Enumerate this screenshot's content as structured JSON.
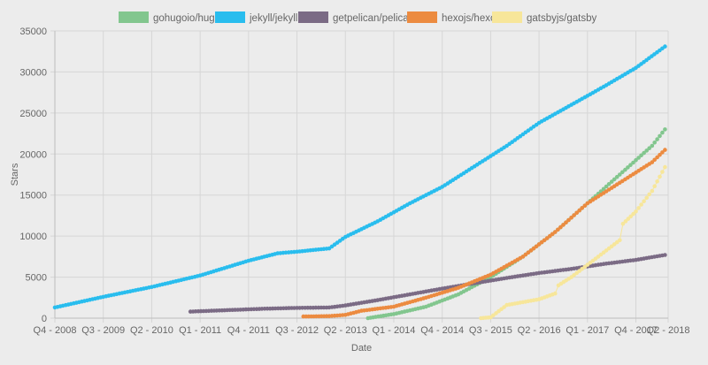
{
  "chart_data": {
    "type": "line",
    "title": "",
    "xlabel": "Date",
    "ylabel": "Stars",
    "ylim": [
      0,
      35000
    ],
    "y_ticks": [
      0,
      5000,
      10000,
      15000,
      20000,
      25000,
      30000,
      35000
    ],
    "x_ticks": [
      "Q4 - 2008",
      "Q3 - 2009",
      "Q2 - 2010",
      "Q1 - 2011",
      "Q4 - 2011",
      "Q3 - 2012",
      "Q2 - 2013",
      "Q1 - 2014",
      "Q4 - 2014",
      "Q3 - 2015",
      "Q2 - 2016",
      "Q1 - 2017",
      "Q4 - 2017",
      "Q2 - 2018"
    ],
    "x_tick_positions": [
      2008.75,
      2009.5,
      2010.25,
      2011.0,
      2011.75,
      2012.5,
      2013.25,
      2014.0,
      2014.75,
      2015.5,
      2016.25,
      2017.0,
      2017.75,
      2018.25
    ],
    "xlim": [
      2008.75,
      2018.25
    ],
    "x_unit": "year (decimal)",
    "grid": true,
    "legend_position": "top",
    "series": [
      {
        "name": "gohugoio/hugo",
        "color": "#82c68e",
        "points": [
          [
            2013.6,
            0
          ],
          [
            2014.0,
            500
          ],
          [
            2014.5,
            1400
          ],
          [
            2015.0,
            2900
          ],
          [
            2015.5,
            5000
          ],
          [
            2016.0,
            7500
          ],
          [
            2016.5,
            10500
          ],
          [
            2017.0,
            14000
          ],
          [
            2017.5,
            17500
          ],
          [
            2018.0,
            21000
          ],
          [
            2018.2,
            23000
          ]
        ]
      },
      {
        "name": "jekyll/jekyll",
        "color": "#29bdee",
        "points": [
          [
            2008.75,
            1300
          ],
          [
            2009.5,
            2600
          ],
          [
            2010.25,
            3800
          ],
          [
            2011.0,
            5200
          ],
          [
            2011.75,
            7000
          ],
          [
            2012.2,
            7900
          ],
          [
            2012.5,
            8100
          ],
          [
            2013.0,
            8500
          ],
          [
            2013.25,
            9900
          ],
          [
            2013.75,
            11800
          ],
          [
            2014.25,
            14000
          ],
          [
            2014.75,
            16000
          ],
          [
            2015.25,
            18500
          ],
          [
            2015.75,
            21000
          ],
          [
            2016.25,
            23800
          ],
          [
            2016.75,
            26000
          ],
          [
            2017.25,
            28200
          ],
          [
            2017.75,
            30500
          ],
          [
            2018.2,
            33100
          ]
        ]
      },
      {
        "name": "getpelican/pelican",
        "color": "#7b6b85",
        "points": [
          [
            2010.85,
            800
          ],
          [
            2011.5,
            1000
          ],
          [
            2012.0,
            1150
          ],
          [
            2012.5,
            1250
          ],
          [
            2013.0,
            1300
          ],
          [
            2013.25,
            1550
          ],
          [
            2013.75,
            2200
          ],
          [
            2014.25,
            2900
          ],
          [
            2014.75,
            3600
          ],
          [
            2015.25,
            4250
          ],
          [
            2015.75,
            4900
          ],
          [
            2016.25,
            5500
          ],
          [
            2016.75,
            6000
          ],
          [
            2017.25,
            6600
          ],
          [
            2017.75,
            7100
          ],
          [
            2018.2,
            7700
          ]
        ]
      },
      {
        "name": "hexojs/hexo",
        "color": "#ec8b40",
        "points": [
          [
            2012.6,
            200
          ],
          [
            2013.0,
            250
          ],
          [
            2013.25,
            400
          ],
          [
            2013.5,
            900
          ],
          [
            2014.0,
            1400
          ],
          [
            2014.5,
            2500
          ],
          [
            2015.0,
            3700
          ],
          [
            2015.5,
            5300
          ],
          [
            2016.0,
            7500
          ],
          [
            2016.5,
            10500
          ],
          [
            2017.0,
            14000
          ],
          [
            2017.5,
            16500
          ],
          [
            2018.0,
            19000
          ],
          [
            2018.2,
            20500
          ]
        ]
      },
      {
        "name": "gatsbyjs/gatsby",
        "color": "#f7e69a",
        "points": [
          [
            2015.35,
            0
          ],
          [
            2015.5,
            100
          ],
          [
            2015.75,
            1600
          ],
          [
            2016.25,
            2300
          ],
          [
            2016.5,
            3000
          ],
          [
            2016.55,
            4000
          ],
          [
            2016.75,
            5000
          ],
          [
            2017.0,
            6500
          ],
          [
            2017.25,
            8000
          ],
          [
            2017.5,
            9500
          ],
          [
            2017.55,
            11500
          ],
          [
            2017.75,
            13000
          ],
          [
            2018.0,
            15500
          ],
          [
            2018.2,
            18400
          ]
        ]
      }
    ]
  }
}
